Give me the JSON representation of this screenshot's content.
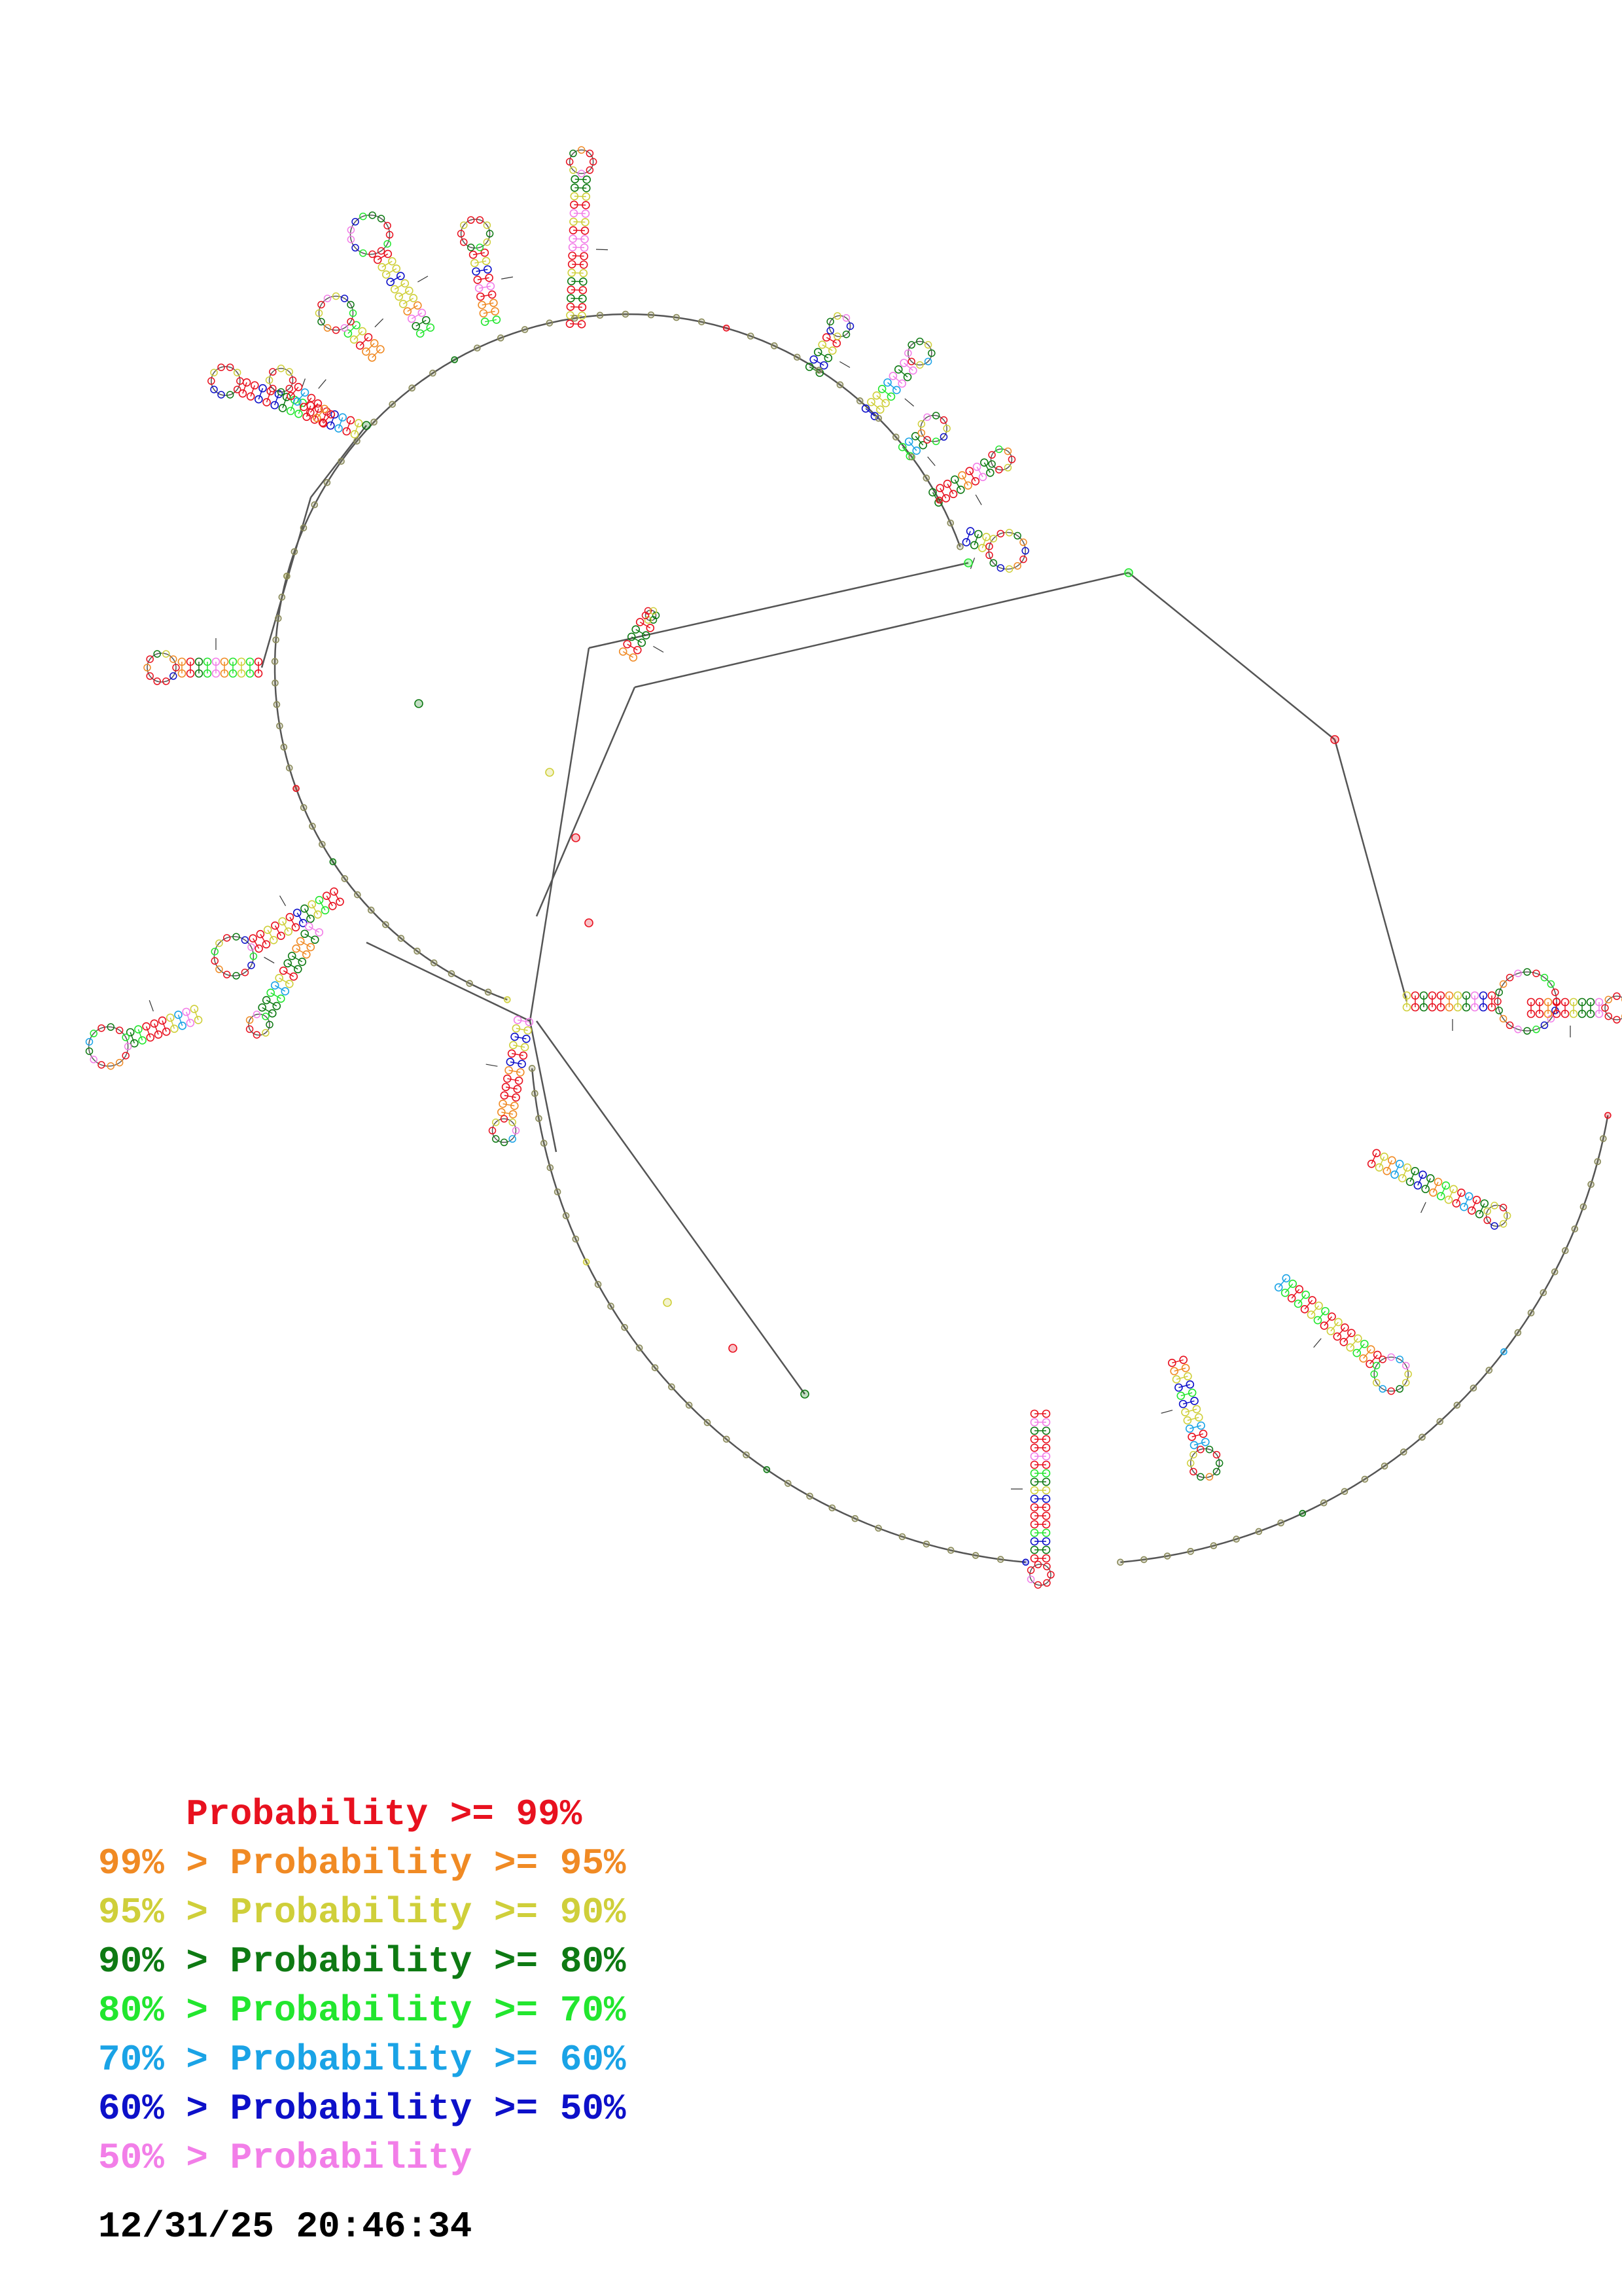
{
  "legend": {
    "rows": [
      {
        "prefix": "    ",
        "label": "Probability >= 99%",
        "color": "#e8111f"
      },
      {
        "prefix": "99% > ",
        "label": "Probability >= 95%",
        "color": "#f08a24"
      },
      {
        "prefix": "95% > ",
        "label": "Probability >= 90%",
        "color": "#cfcf3a"
      },
      {
        "prefix": "90% > ",
        "label": "Probability >= 80%",
        "color": "#0e7a13"
      },
      {
        "prefix": "80% > ",
        "label": "Probability >= 70%",
        "color": "#22e62e"
      },
      {
        "prefix": "70% > ",
        "label": "Probability >= 60%",
        "color": "#1aa3e6"
      },
      {
        "prefix": "60% > ",
        "label": "Probability >= 50%",
        "color": "#0d10c9"
      },
      {
        "prefix": "50% > ",
        "label": "Probability",
        "color": "#f27ee8"
      }
    ]
  },
  "timestamp": "12/31/25 20:46:34",
  "colors": {
    "backbone": "#555555",
    "nucleotide_stroke": "#7a3b3b"
  }
}
